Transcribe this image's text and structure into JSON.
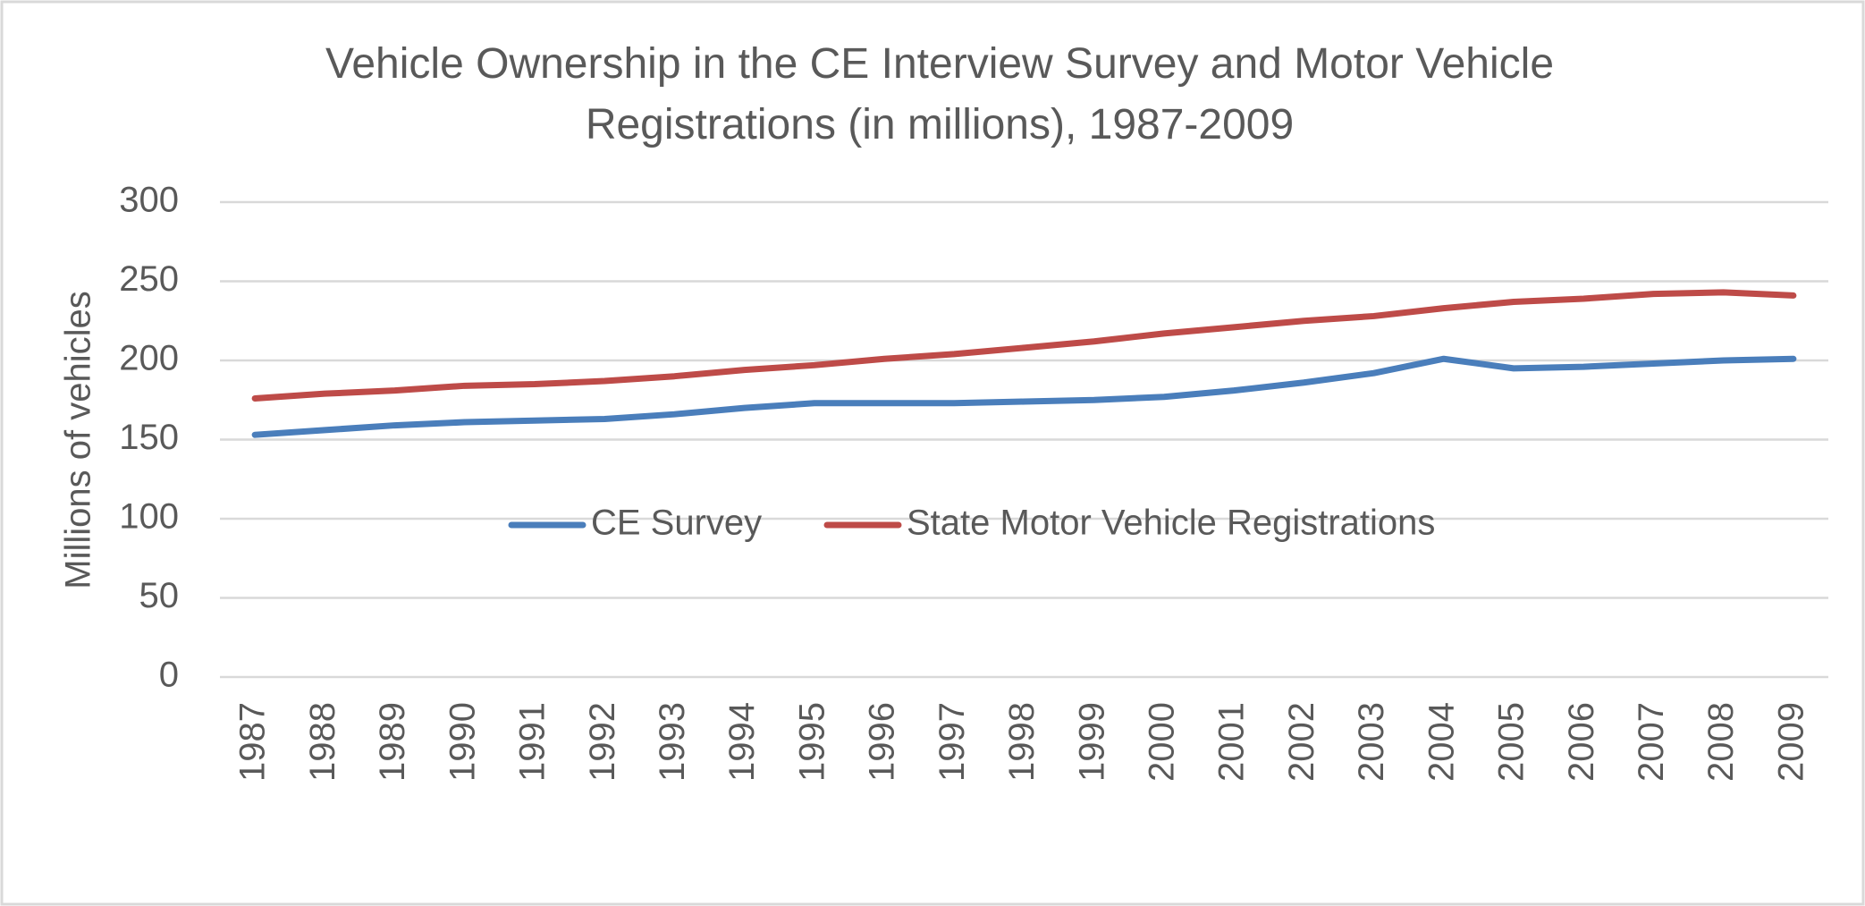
{
  "chart_data": {
    "type": "line",
    "title": "Vehicle Ownership in the CE Interview Survey and Motor Vehicle Registrations (in millions), 1987-2009",
    "y_label": "Millions of vehicles",
    "categories": [
      "1987",
      "1988",
      "1989",
      "1990",
      "1991",
      "1992",
      "1993",
      "1994",
      "1995",
      "1996",
      "1997",
      "1998",
      "1999",
      "2000",
      "2001",
      "2002",
      "2003",
      "2004",
      "2005",
      "2006",
      "2007",
      "2008",
      "2009"
    ],
    "series": [
      {
        "name": "CE Survey",
        "color": "#4a7ebb",
        "values": [
          153,
          156,
          159,
          161,
          162,
          163,
          166,
          170,
          173,
          173,
          173,
          174,
          175,
          177,
          181,
          186,
          192,
          201,
          195,
          196,
          198,
          200,
          201
        ]
      },
      {
        "name": "State Motor Vehicle Registrations",
        "color": "#be4b48",
        "values": [
          176,
          179,
          181,
          184,
          185,
          187,
          190,
          194,
          197,
          201,
          204,
          208,
          212,
          217,
          221,
          225,
          228,
          233,
          237,
          239,
          242,
          243,
          241
        ]
      }
    ],
    "ylim": [
      0,
      300
    ],
    "yticks": [
      0,
      50,
      100,
      150,
      200,
      250,
      300
    ],
    "grid": true,
    "legend": "center"
  }
}
